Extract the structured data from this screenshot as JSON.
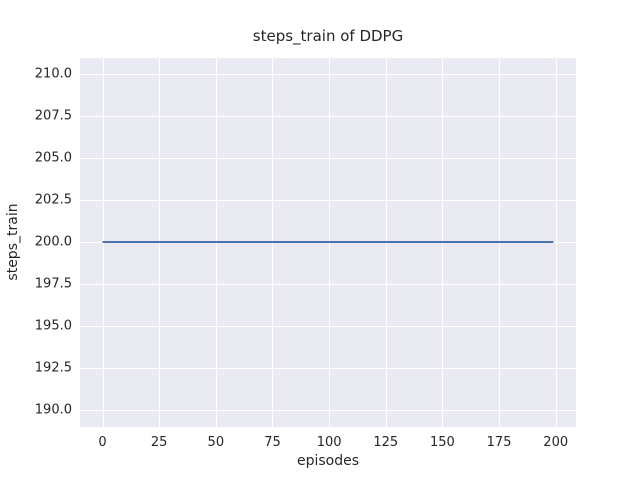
{
  "chart_data": {
    "type": "line",
    "title": "steps_train of DDPG",
    "xlabel": "episodes",
    "ylabel": "steps_train",
    "xlim": [
      -9.95,
      208.95
    ],
    "ylim": [
      188.95,
      210.95
    ],
    "xticks": [
      0,
      25,
      50,
      75,
      100,
      125,
      150,
      175,
      200
    ],
    "xtick_labels": [
      "0",
      "25",
      "50",
      "75",
      "100",
      "125",
      "150",
      "175",
      "200"
    ],
    "yticks": [
      190.0,
      192.5,
      195.0,
      197.5,
      200.0,
      202.5,
      205.0,
      207.5,
      210.0
    ],
    "ytick_labels": [
      "190.0",
      "192.5",
      "195.0",
      "197.5",
      "200.0",
      "202.5",
      "205.0",
      "207.5",
      "210.0"
    ],
    "grid": true,
    "legend": "none",
    "series": [
      {
        "name": "steps_train",
        "x": [
          0,
          199
        ],
        "y": [
          200,
          200
        ],
        "color": "#4C72B0",
        "line_width": 2
      }
    ],
    "colors": {
      "plot_background": "#EAEAF2",
      "grid_color": "#FFFFFF",
      "text_color": "#262626",
      "figure_background": "#FFFFFF"
    }
  }
}
